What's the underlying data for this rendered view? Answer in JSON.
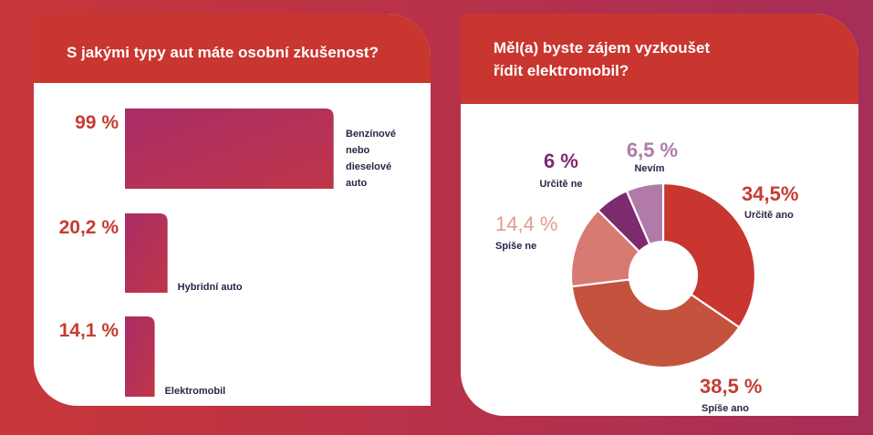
{
  "left_panel": {
    "title": "S jakými typy aut máte osobní zkušenost?"
  },
  "right_panel": {
    "title_line1": "Měl(a) byste zájem vyzkoušet",
    "title_line2": "řídit elektromobil?"
  },
  "chart_data": [
    {
      "type": "bar",
      "title": "S jakými typy aut máte osobní zkušenost?",
      "categories": [
        [
          "Benzínové",
          "nebo",
          "dieselové",
          "auto"
        ],
        [
          "Hybridní auto"
        ],
        [
          "Elektromobil"
        ]
      ],
      "values": [
        99,
        20.2,
        14.1
      ],
      "value_labels": [
        "99 %",
        "20,2 %",
        "14,1 %"
      ],
      "unit": "%",
      "colors": {
        "bar_start": "#a82d66",
        "bar_end": "#c03549",
        "value_text": "#c53c32",
        "category_text": "#2b2548"
      }
    },
    {
      "type": "pie",
      "title": "Měl(a) byste zájem vyzkoušet řídit elektromobil?",
      "donut": true,
      "slices": [
        {
          "label": "Určitě ano",
          "value": 34.5,
          "value_label": "34,5%",
          "color": "#c9352f",
          "value_color": "#c53c32"
        },
        {
          "label": "Spíše ano",
          "value": 38.5,
          "value_label": "38,5 %",
          "color": "#c4533e",
          "value_color": "#c53c32"
        },
        {
          "label": "Spíše ne",
          "value": 14.4,
          "value_label": "14,4 %",
          "color": "#d77b72",
          "value_color": "#e39a91"
        },
        {
          "label": "Určitě ne",
          "value": 6,
          "value_label": "6 %",
          "color": "#7d2a6e",
          "value_color": "#7d2a6e"
        },
        {
          "label": "Nevím",
          "value": 6.5,
          "value_label": "6,5 %",
          "color": "#b17aa8",
          "value_color": "#b17aa8"
        }
      ],
      "label_color": "#2b2548"
    }
  ]
}
